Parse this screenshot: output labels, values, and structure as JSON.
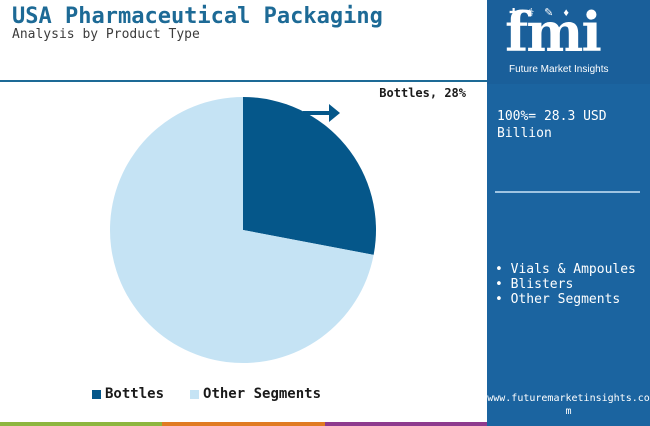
{
  "header": {
    "title": "USA Pharmaceutical Packaging",
    "subtitle": "Analysis by Product Type"
  },
  "chart_data": {
    "type": "pie",
    "series": [
      {
        "name": "Bottles",
        "value": 28,
        "color": "#05578a"
      },
      {
        "name": "Other Segments",
        "value": 72,
        "color": "#c5e3f4"
      }
    ],
    "callout_label": "Bottles, 28%",
    "legend": [
      "Bottles",
      "Other Segments"
    ],
    "legend_position": "bottom"
  },
  "panel": {
    "logo_text": "fmi",
    "logo_caption": "Future Market Insights",
    "total": "100%= 28.3 USD Billion",
    "segments": [
      "Vials & Ampoules",
      "Blisters",
      "Other Segments"
    ],
    "website": "www.futuremarketinsights.com"
  },
  "colors": {
    "title": "#1d6a96",
    "panel": "#1b64a0",
    "bottles": "#05578a",
    "other": "#c5e3f4",
    "bar_green": "#8db63f",
    "bar_orange": "#e07b22",
    "bar_purple": "#8e3a8e"
  }
}
